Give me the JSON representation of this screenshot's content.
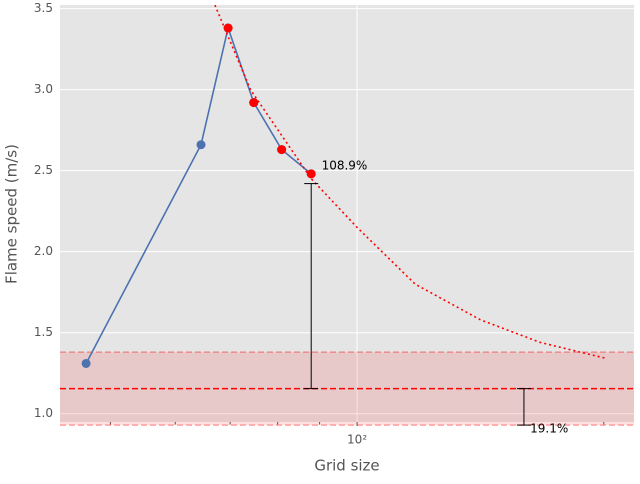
{
  "chart_data": {
    "type": "line",
    "xlabel": "Grid size",
    "ylabel": "Flame speed (m/s)",
    "xscale": "log",
    "grid": true,
    "xlim": [
      43.4,
      217.7
    ],
    "ylim": [
      0.949,
      3.522
    ],
    "xticks": [
      {
        "value": 100,
        "label": "10²"
      }
    ],
    "xminorticks": [
      50,
      60,
      70,
      80,
      90,
      200
    ],
    "yticks": [
      {
        "value": 1.0,
        "label": "1.0"
      },
      {
        "value": 1.5,
        "label": "1.5"
      },
      {
        "value": 2.0,
        "label": "2.0"
      },
      {
        "value": 2.5,
        "label": "2.5"
      },
      {
        "value": 3.0,
        "label": "3.0"
      },
      {
        "value": 3.5,
        "label": "3.5"
      }
    ],
    "series": [
      {
        "color": "#4c72b0",
        "style": "line-marker",
        "x": [
          46.7,
          64.5,
          69.6,
          74.8,
          80.9,
          87.9
        ],
        "values": [
          1.31,
          2.66,
          3.38,
          2.92,
          2.63,
          2.48
        ]
      },
      {
        "color": "#ff0000",
        "style": "marker",
        "x": [
          69.6,
          74.8,
          80.9,
          87.9
        ],
        "values": [
          3.38,
          2.92,
          2.63,
          2.48
        ]
      },
      {
        "color": "#ff0000",
        "style": "dotted",
        "x": [
          66.7,
          74.1,
          87.9,
          100,
          117.7,
          141.3,
          167.2,
          201.8
        ],
        "values": [
          3.55,
          3.0,
          2.45,
          2.15,
          1.8,
          1.58,
          1.44,
          1.34
        ]
      }
    ],
    "band": {
      "low": 0.93,
      "high": 1.38,
      "mean": 1.155,
      "color": "#ff0000"
    },
    "error_bars": [
      {
        "x": 87.9,
        "low": 1.155,
        "high": 2.42
      },
      {
        "x": 159.8,
        "low": 0.93,
        "high": 1.155
      }
    ],
    "annotations": [
      {
        "text": "108.9%",
        "x": 90.5,
        "y": 2.53
      },
      {
        "text": "19.1%",
        "x": 162.6,
        "y": 0.905
      }
    ]
  }
}
